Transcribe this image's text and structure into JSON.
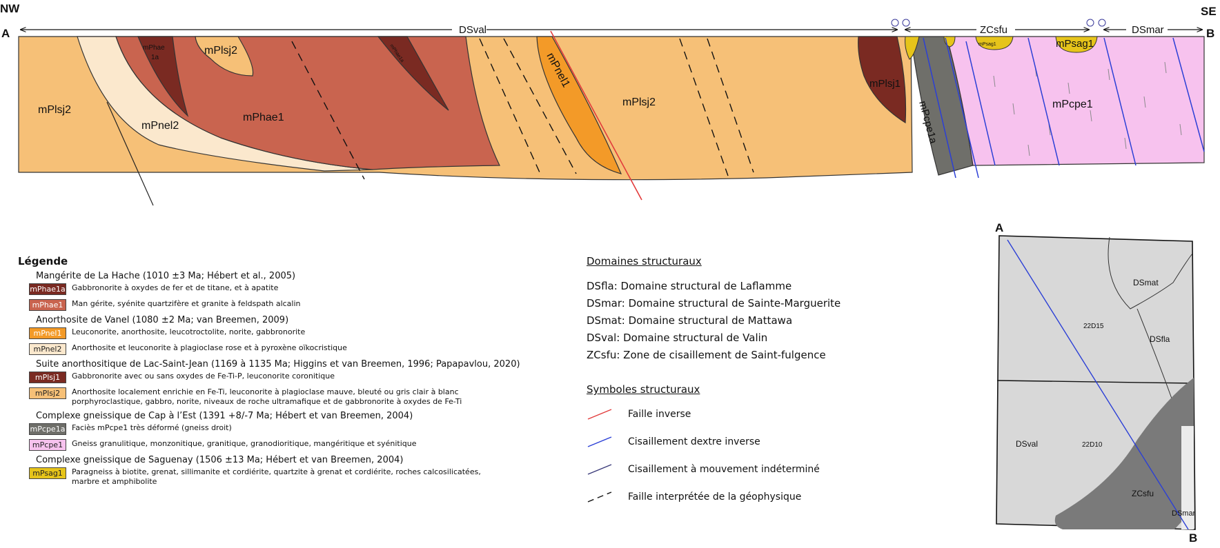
{
  "section": {
    "corner_left": "NW",
    "corner_right": "SE",
    "end_left": "A",
    "end_right": "B",
    "domains": {
      "dsval": "DSval",
      "zcsfu": "ZCsfu",
      "dsmar": "DSmar"
    },
    "units": {
      "mPlsj2_left": "mPlsj2",
      "mPnel2": "mPnel2",
      "mPhae1": "mPhae1",
      "mPhae1a_top": "mPhae",
      "mPhae1a_top2": "1a",
      "mPhae1a_thin": "mPhae1a",
      "mPlsj2_top": "mPlsj2",
      "mPnel1": "mPnel1",
      "mPlsj2_mid": "mPlsj2",
      "mPlsj1": "mPlsj1",
      "mPcpe1a": "mPcpe1a",
      "mPsag1_small": "mPsag1",
      "mPsag1": "mPsag1",
      "mPcpe1": "mPcpe1"
    }
  },
  "legend": {
    "title": "Légende",
    "groups": [
      {
        "name": "Mangérite de La Hache (1010 ±3 Ma; Hébert et al., 2005)",
        "items": [
          {
            "code": "mPhae1a",
            "color": "#7a2a22",
            "text_color": "#ffffff",
            "desc": "Gabbronorite à oxydes de fer et de titane, et à apatite"
          },
          {
            "code": "mPhae1",
            "color": "#c9644f",
            "text_color": "#ffffff",
            "desc": "Man gérite, syénite quartzifère et granite à feldspath alcalin"
          }
        ]
      },
      {
        "name": "Anorthosite de Vanel (1080 ±2 Ma; van Breemen, 2009)",
        "items": [
          {
            "code": "mPnel1",
            "color": "#f39a28",
            "text_color": "#ffffff",
            "desc": "Leuconorite, anorthosite, leucotroctolite, norite, gabbronorite"
          },
          {
            "code": "mPnel2",
            "color": "#fbe8cd",
            "text_color": "#222222",
            "desc": "Anorthosite et leuconorite à plagioclase rose et à pyroxène oïkocristique"
          }
        ]
      },
      {
        "name": "Suite anorthositique de Lac-Saint-Jean (1169 à 1135 Ma; Higgins et van Breemen, 1996; Papapavlou, 2020)",
        "items": [
          {
            "code": "mPlsj1",
            "color": "#7a2a22",
            "text_color": "#ffffff",
            "desc": "Gabbronorite avec ou sans oxydes de Fe-Ti-P, leuconorite coronitique"
          },
          {
            "code": "mPlsj2",
            "color": "#f6c077",
            "text_color": "#222222",
            "desc": "Anorthosite localement enrichie en Fe-Ti, leuconorite à plagioclase mauve, bleuté ou gris clair à blanc porphyroclastique, gabbro, norite, niveaux de roche ultramafique et de gabbronorite à oxydes de Fe-Ti"
          }
        ]
      },
      {
        "name": "Complexe gneissique de Cap à l’Est (1391 +8/-7 Ma; Hébert et van Breemen, 2004)",
        "items": [
          {
            "code": "mPcpe1a",
            "color": "#6f6f6a",
            "text_color": "#ffffff",
            "desc": "Faciès mPcpe1 très déformé (gneiss droit)"
          },
          {
            "code": "mPcpe1",
            "color": "#f7c2ee",
            "text_color": "#222222",
            "desc": "Gneiss granulitique, monzonitique, granitique, granodioritique, mangéritique et syénitique"
          }
        ]
      },
      {
        "name": "Complexe gneissique de Saguenay (1506 ±13 Ma; Hébert et van Breemen, 2004)",
        "items": [
          {
            "code": "mPsag1",
            "color": "#e6c41a",
            "text_color": "#222222",
            "desc": "Paragneiss à biotite, grenat, sillimanite et cordiérite, quartzite à grenat et cordiérite, roches calcosilicatées, marbre et amphibolite"
          }
        ]
      }
    ]
  },
  "structural_domains": {
    "title": "Domaines structuraux",
    "lines": [
      "DSfla: Domaine structural de Laflamme",
      "DSmar: Domaine structural de Sainte-Marguerite",
      "DSmat: Domaine structural de Mattawa",
      "DSval: Domaine structural de Valin",
      "ZCsfu: Zone de cisaillement de Saint-fulgence"
    ]
  },
  "structural_symbols": {
    "title": "Symboles structuraux",
    "items": [
      {
        "label": "Faille inverse",
        "color": "#e23b3b",
        "style": "solid"
      },
      {
        "label": "Cisaillement dextre inverse",
        "color": "#2b3fd6",
        "style": "solid"
      },
      {
        "label": "Cisaillement à mouvement indéterminé",
        "color": "#3a3a7a",
        "style": "solid"
      },
      {
        "label": "Faille interprétée de la géophysique",
        "color": "#111111",
        "style": "dashed"
      }
    ]
  },
  "inset_map": {
    "point_a": "A",
    "point_b": "B",
    "sheets": [
      "22D15",
      "22D10"
    ],
    "domains": [
      "DSmat",
      "DSfla",
      "DSval",
      "ZCsfu",
      "DSmar"
    ]
  }
}
